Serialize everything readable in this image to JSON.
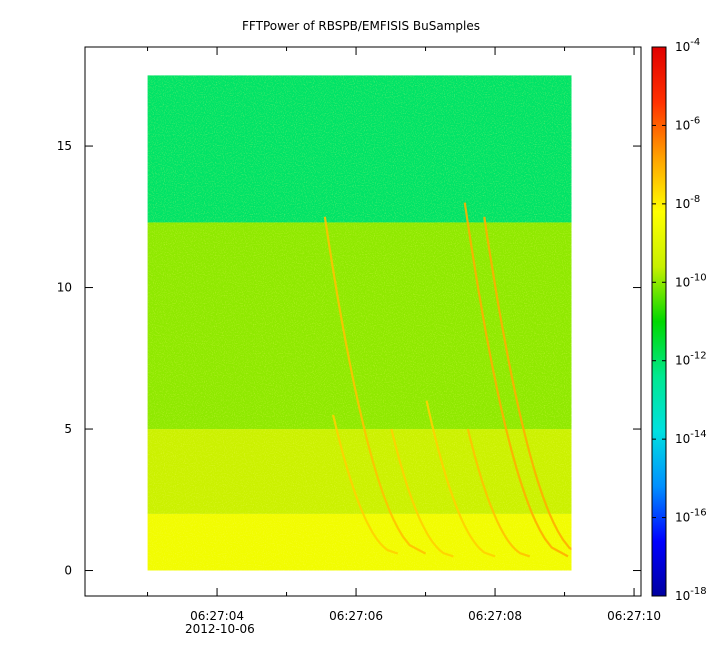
{
  "chart_data": {
    "type": "heatmap",
    "title": "FFTPower of RBSPB/EMFISIS  BuSamples",
    "xlabel": "",
    "ylabel": "",
    "x_axis": {
      "kind": "time",
      "date": "2012-10-06",
      "range": [
        "06:27:02.1",
        "06:27:10.1"
      ],
      "ticks": [
        "06:27:04",
        "06:27:06",
        "06:27:08",
        "06:27:10"
      ],
      "minor_ticks": [
        "06:27:03",
        "06:27:05",
        "06:27:07",
        "06:27:09"
      ],
      "data_extent": [
        "06:27:03.0",
        "06:27:09.1"
      ]
    },
    "y_axis": {
      "range": [
        -0.9,
        18.5
      ],
      "ticks": [
        0,
        5,
        10,
        15
      ],
      "data_extent": [
        0,
        17.5
      ]
    },
    "colorbar": {
      "scale": "log",
      "range": [
        1e-18,
        0.0001
      ],
      "colormap": "rainbow",
      "ticks": [
        {
          "base": "10",
          "exp": "-4"
        },
        {
          "base": "10",
          "exp": "-6"
        },
        {
          "base": "10",
          "exp": "-8"
        },
        {
          "base": "10",
          "exp": "-10"
        },
        {
          "base": "10",
          "exp": "-12"
        },
        {
          "base": "10",
          "exp": "-14"
        },
        {
          "base": "10",
          "exp": "-16"
        },
        {
          "base": "10",
          "exp": "-18"
        }
      ],
      "colors": [
        "#0000a0",
        "#0000ff",
        "#0090ff",
        "#00e0e0",
        "#00e890",
        "#00d800",
        "#c8f000",
        "#ffff00",
        "#ffa000",
        "#ff3000",
        "#e00000"
      ]
    },
    "regions": [
      {
        "y_from": 12.3,
        "y_to": 17.5,
        "level": 1e-12
      },
      {
        "y_from": 5.0,
        "y_to": 12.3,
        "level": 1e-10
      },
      {
        "y_from": 2.0,
        "y_to": 5.0,
        "level": 3e-10
      },
      {
        "y_from": 0.0,
        "y_to": 2.0,
        "level": 3e-09
      }
    ],
    "features": [
      {
        "kind": "dispersion",
        "t0": "06:27:06.40",
        "f_min": 0.6,
        "f_max": 5.5,
        "level": 3e-08
      },
      {
        "kind": "dispersion",
        "t0": "06:27:06.80",
        "f_min": 0.6,
        "f_max": 12.5,
        "level": 5e-08
      },
      {
        "kind": "dispersion",
        "t0": "06:27:07.20",
        "f_min": 0.5,
        "f_max": 5.0,
        "level": 3e-08
      },
      {
        "kind": "dispersion",
        "t0": "06:27:07.80",
        "f_min": 0.5,
        "f_max": 6.0,
        "level": 3e-08
      },
      {
        "kind": "dispersion",
        "t0": "06:27:08.30",
        "f_min": 0.5,
        "f_max": 5.0,
        "level": 5e-08
      },
      {
        "kind": "dispersion",
        "t0": "06:27:08.85",
        "f_min": 0.5,
        "f_max": 13.0,
        "level": 1e-07
      },
      {
        "kind": "dispersion",
        "t0": "06:27:09.10",
        "f_min": 0.5,
        "f_max": 12.5,
        "level": 1e-07
      }
    ]
  }
}
